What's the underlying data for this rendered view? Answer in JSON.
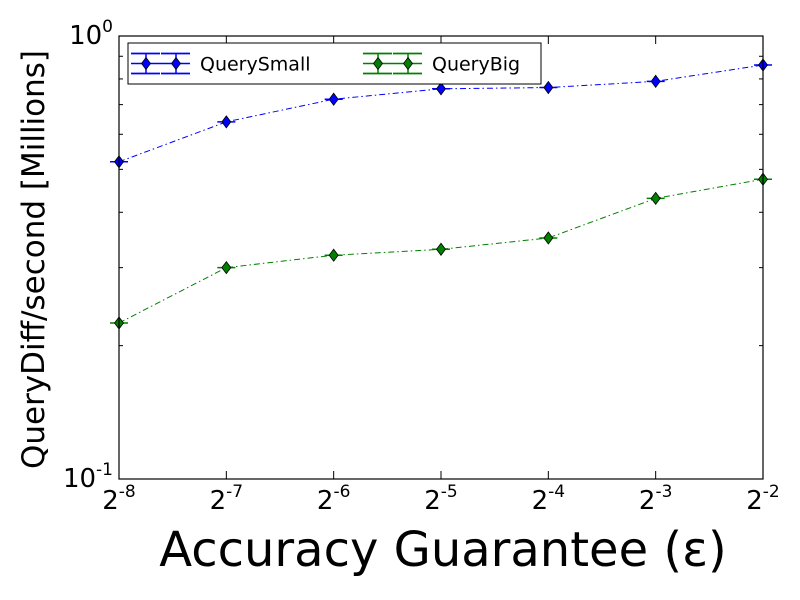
{
  "chart_data": {
    "type": "line",
    "x": [
      -8,
      -7,
      -6,
      -5,
      -4,
      -3,
      -2
    ],
    "xscale": "log2",
    "yscale": "log10",
    "xlim": [
      -8,
      -2
    ],
    "ylim": [
      0.1,
      1.0
    ],
    "xlabel": "Accuracy Guarantee (ε)",
    "ylabel": "QueryDiff/second [Millions]",
    "x_tick_labels": [
      {
        "base": "2",
        "exp": "-8"
      },
      {
        "base": "2",
        "exp": "-7"
      },
      {
        "base": "2",
        "exp": "-6"
      },
      {
        "base": "2",
        "exp": "-5"
      },
      {
        "base": "2",
        "exp": "-4"
      },
      {
        "base": "2",
        "exp": "-3"
      },
      {
        "base": "2",
        "exp": "-2"
      }
    ],
    "y_tick_labels": [
      {
        "value": 0.1,
        "base": "10",
        "exp": "-1"
      },
      {
        "value": 1.0,
        "base": "10",
        "exp": "0"
      }
    ],
    "legend_position": "top-left",
    "series": [
      {
        "name": "QuerySmall",
        "color": "#0000ff",
        "marker": "diamond",
        "linestyle": "dash-dot",
        "values": [
          0.52,
          0.64,
          0.72,
          0.76,
          0.765,
          0.79,
          0.86
        ]
      },
      {
        "name": "QueryBig",
        "color": "#008000",
        "marker": "diamond",
        "linestyle": "dash-dot",
        "values": [
          0.225,
          0.3,
          0.32,
          0.33,
          0.35,
          0.43,
          0.475
        ]
      }
    ]
  }
}
